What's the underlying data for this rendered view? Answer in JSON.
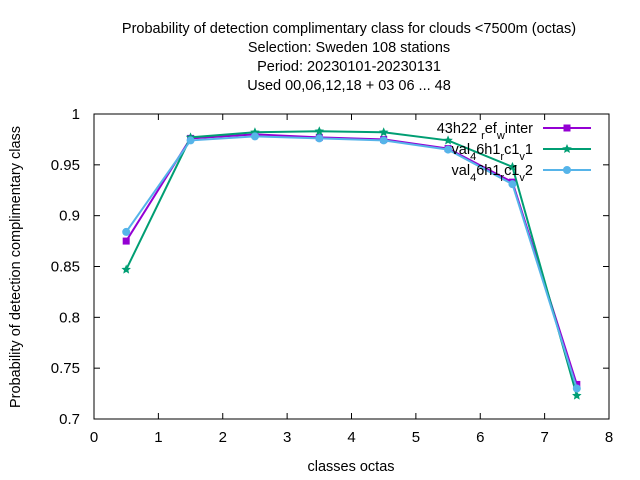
{
  "chart_data": {
    "type": "line",
    "title_lines": [
      "Probability of detection complimentary class  for clouds <7500m (octas)",
      "Selection: Sweden    108 stations",
      "Period: 20230101-20230131",
      "Used  00,06,12,18  + 03 06 ... 48"
    ],
    "xlabel": "classes octas",
    "ylabel": "Probability of detection complimentary class",
    "xlim": [
      0,
      8
    ],
    "ylim": [
      0.7,
      1.0
    ],
    "x_ticks": [
      0,
      1,
      2,
      3,
      4,
      5,
      6,
      7,
      8
    ],
    "x_tick_labels": [
      "0",
      "1",
      "2",
      "3",
      "4",
      "5",
      "6",
      "7",
      "8"
    ],
    "y_ticks": [
      0.7,
      0.75,
      0.8,
      0.85,
      0.9,
      0.95,
      1.0
    ],
    "y_tick_labels": [
      "0.7",
      "0.75",
      "0.8",
      "0.85",
      "0.9",
      "0.95",
      "1"
    ],
    "grid": false,
    "legend_position": "top-right",
    "x": [
      0.5,
      1.5,
      2.5,
      3.5,
      4.5,
      5.5,
      6.5,
      7.5
    ],
    "series": [
      {
        "name": "43h22 r ef w inter",
        "legend_parts": [
          {
            "text": "43h22 ",
            "pos": "base"
          },
          {
            "text": "r",
            "pos": "sub"
          },
          {
            "text": "ef",
            "pos": "base"
          },
          {
            "text": "w",
            "pos": "sub"
          },
          {
            "text": "inter",
            "pos": "base"
          }
        ],
        "color": "#9400d3",
        "marker": "square",
        "values": [
          0.875,
          0.976,
          0.98,
          0.977,
          0.975,
          0.966,
          0.933,
          0.734
        ]
      },
      {
        "name": "val 4 6h1 r c1 v 1",
        "legend_parts": [
          {
            "text": "val",
            "pos": "base"
          },
          {
            "text": "4",
            "pos": "sub"
          },
          {
            "text": "6h1",
            "pos": "base"
          },
          {
            "text": "r",
            "pos": "sub"
          },
          {
            "text": "c1",
            "pos": "base"
          },
          {
            "text": "v",
            "pos": "sub"
          },
          {
            "text": "1",
            "pos": "base"
          }
        ],
        "color": "#009e73",
        "marker": "star",
        "values": [
          0.847,
          0.977,
          0.982,
          0.983,
          0.982,
          0.974,
          0.948,
          0.723
        ]
      },
      {
        "name": "val 4 6h1 r c1 v 2",
        "legend_parts": [
          {
            "text": "val",
            "pos": "base"
          },
          {
            "text": "4",
            "pos": "sub"
          },
          {
            "text": "6h1",
            "pos": "base"
          },
          {
            "text": "r",
            "pos": "sub"
          },
          {
            "text": "c1",
            "pos": "base"
          },
          {
            "text": "v",
            "pos": "sub"
          },
          {
            "text": "2",
            "pos": "base"
          }
        ],
        "color": "#56b4e9",
        "marker": "circle",
        "values": [
          0.884,
          0.974,
          0.978,
          0.976,
          0.974,
          0.965,
          0.931,
          0.73
        ]
      }
    ]
  }
}
